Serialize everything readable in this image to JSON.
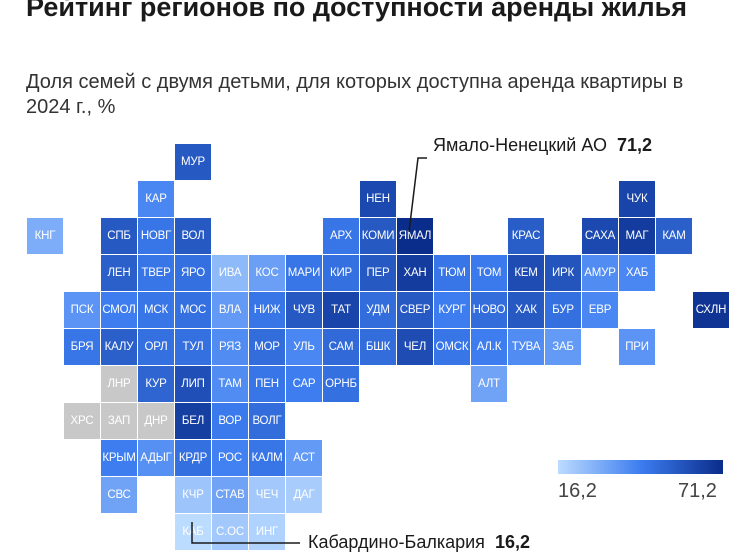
{
  "title": "Рейтинг регионов по доступности аренды жилья",
  "subtitle": "Доля семей с двумя детьми, для которых доступна аренда квартиры в 2024 г., %",
  "colors": {
    "min": "#bcdcff",
    "max": "#0a2c8a",
    "na": "#c8c8c8"
  },
  "callouts": {
    "top": {
      "region": "Ямало-Ненецкий АО",
      "value": "71,2"
    },
    "bottom": {
      "region": "Кабардино-Балкария",
      "value": "16,2"
    }
  },
  "legend": {
    "min_label": "16,2",
    "max_label": "71,2"
  },
  "regions": [
    {
      "label": "МУР",
      "level": 0.72
    },
    {
      "label": "КАР",
      "level": 0.45
    },
    {
      "label": "НЕН",
      "level": 0.82
    },
    {
      "label": "ЧУК",
      "level": 0.85
    },
    {
      "label": "КНГ",
      "level": 0.25
    },
    {
      "label": "СПБ",
      "level": 0.72
    },
    {
      "label": "НОВГ",
      "level": 0.55
    },
    {
      "label": "ВОЛ",
      "level": 0.72
    },
    {
      "label": "АРХ",
      "level": 0.55
    },
    {
      "label": "КОМИ",
      "level": 0.72
    },
    {
      "label": "ЯМАЛ",
      "level": 1.0
    },
    {
      "label": "КРАС",
      "level": 0.7
    },
    {
      "label": "САХА",
      "level": 0.82
    },
    {
      "label": "МАГ",
      "level": 0.9
    },
    {
      "label": "КАМ",
      "level": 0.68
    },
    {
      "label": "ЛЕН",
      "level": 0.68
    },
    {
      "label": "ТВЕР",
      "level": 0.55
    },
    {
      "label": "ЯРО",
      "level": 0.58
    },
    {
      "label": "ИВА",
      "level": 0.18
    },
    {
      "label": "КОС",
      "level": 0.32
    },
    {
      "label": "МАРИ",
      "level": 0.55
    },
    {
      "label": "КИР",
      "level": 0.58
    },
    {
      "label": "ПЕР",
      "level": 0.72
    },
    {
      "label": "ХАН",
      "level": 0.9
    },
    {
      "label": "ТЮМ",
      "level": 0.55
    },
    {
      "label": "ТОМ",
      "level": 0.52
    },
    {
      "label": "КЕМ",
      "level": 0.8
    },
    {
      "label": "ИРК",
      "level": 0.75
    },
    {
      "label": "АМУР",
      "level": 0.42
    },
    {
      "label": "ХАБ",
      "level": 0.45
    },
    {
      "label": "ПСК",
      "level": 0.38
    },
    {
      "label": "СМОЛ",
      "level": 0.5
    },
    {
      "label": "МСК",
      "level": 0.55
    },
    {
      "label": "МОС",
      "level": 0.58
    },
    {
      "label": "ВЛА",
      "level": 0.35
    },
    {
      "label": "НИЖ",
      "level": 0.55
    },
    {
      "label": "ЧУВ",
      "level": 0.72
    },
    {
      "label": "ТАТ",
      "level": 0.85
    },
    {
      "label": "УДМ",
      "level": 0.6
    },
    {
      "label": "СВЕР",
      "level": 0.72
    },
    {
      "label": "КУРГ",
      "level": 0.5
    },
    {
      "label": "НОВО",
      "level": 0.6
    },
    {
      "label": "ХАК",
      "level": 0.72
    },
    {
      "label": "БУР",
      "level": 0.58
    },
    {
      "label": "ЕВР",
      "level": 0.45
    },
    {
      "label": "СХЛН",
      "level": 0.95
    },
    {
      "label": "БРЯ",
      "level": 0.55
    },
    {
      "label": "КАЛУ",
      "level": 0.68
    },
    {
      "label": "ОРЛ",
      "level": 0.58
    },
    {
      "label": "ТУЛ",
      "level": 0.58
    },
    {
      "label": "РЯЗ",
      "level": 0.42
    },
    {
      "label": "МОР",
      "level": 0.6
    },
    {
      "label": "УЛЬ",
      "level": 0.45
    },
    {
      "label": "САМ",
      "level": 0.62
    },
    {
      "label": "БШК",
      "level": 0.6
    },
    {
      "label": "ЧЕЛ",
      "level": 0.8
    },
    {
      "label": "ОМСК",
      "level": 0.55
    },
    {
      "label": "АЛ.К",
      "level": 0.5
    },
    {
      "label": "ТУВА",
      "level": 0.42
    },
    {
      "label": "ЗАБ",
      "level": 0.35
    },
    {
      "label": "ПРИ",
      "level": 0.38
    },
    {
      "label": "ЛНР",
      "na": true
    },
    {
      "label": "КУР",
      "level": 0.65
    },
    {
      "label": "ЛИП",
      "level": 0.78
    },
    {
      "label": "ТАМ",
      "level": 0.42
    },
    {
      "label": "ПЕН",
      "level": 0.55
    },
    {
      "label": "САР",
      "level": 0.5
    },
    {
      "label": "ОРНБ",
      "level": 0.58
    },
    {
      "label": "АЛТ",
      "level": 0.3
    },
    {
      "label": "ХРС",
      "na": true
    },
    {
      "label": "ЗАП",
      "na": true
    },
    {
      "label": "ДНР",
      "na": true
    },
    {
      "label": "БЕЛ",
      "level": 0.88
    },
    {
      "label": "ВОР",
      "level": 0.52
    },
    {
      "label": "ВОЛГ",
      "level": 0.6
    },
    {
      "label": "КРЫМ",
      "level": 0.5
    },
    {
      "label": "АДЫГ",
      "level": 0.4
    },
    {
      "label": "КРДР",
      "level": 0.58
    },
    {
      "label": "РОС",
      "level": 0.48
    },
    {
      "label": "КАЛМ",
      "level": 0.55
    },
    {
      "label": "АСТ",
      "level": 0.35
    },
    {
      "label": "СВС",
      "level": 0.3
    },
    {
      "label": "КЧР",
      "level": 0.12
    },
    {
      "label": "СТАВ",
      "level": 0.3
    },
    {
      "label": "ЧЕЧ",
      "level": 0.1
    },
    {
      "label": "ДАГ",
      "level": 0.08
    },
    {
      "label": "КАБ",
      "level": 0.0
    },
    {
      "label": "С.ОС",
      "level": 0.1
    },
    {
      "label": "ИНГ",
      "level": 0.05
    }
  ]
}
